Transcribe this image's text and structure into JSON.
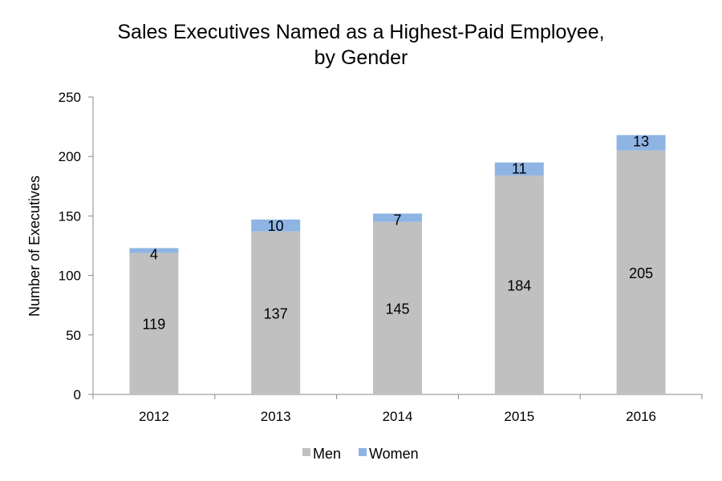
{
  "chart_data": {
    "type": "bar",
    "stacked": true,
    "title": [
      "Sales Executives Named as a Highest-Paid Employee,",
      "by Gender"
    ],
    "xlabel": "",
    "ylabel": "Number of Executives",
    "ylim": [
      0,
      250
    ],
    "yticks": [
      0,
      50,
      100,
      150,
      200,
      250
    ],
    "grid": false,
    "legend_position": "bottom",
    "categories": [
      "2012",
      "2013",
      "2014",
      "2015",
      "2016"
    ],
    "series": [
      {
        "name": "Men",
        "values": [
          119,
          137,
          145,
          184,
          205
        ],
        "color": "#c0c0c0"
      },
      {
        "name": "Women",
        "values": [
          4,
          10,
          7,
          11,
          13
        ],
        "color": "#8eb4e3"
      }
    ]
  }
}
